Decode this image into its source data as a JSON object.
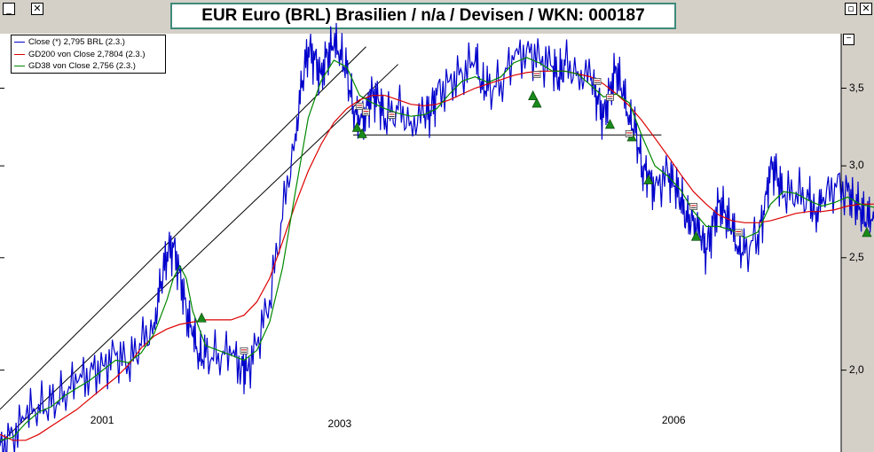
{
  "window": {
    "minimize_symbol": "_",
    "close_symbol": "✕",
    "restore_symbol": "▫",
    "corner_close_symbol": "✕"
  },
  "title": "EUR Euro (BRL) Brasilien / n/a / Devisen / WKN: 000187",
  "legend": [
    {
      "label": "Close (*) 2,795 BRL (2.3.)",
      "color": "#0000cc"
    },
    {
      "label": "GD200 von Close 2,7804 (2.3.)",
      "color": "#dd0000"
    },
    {
      "label": "GD38 von Close 2,756 (2.3.)",
      "color": "#008800"
    }
  ],
  "chart_data": {
    "type": "line",
    "title": "EUR Euro (BRL) Brasilien / n/a / Devisen / WKN: 000187",
    "x_axis_labels": [
      {
        "label": "2001",
        "x": 2001.5
      },
      {
        "label": "2003",
        "x": 2003.35
      },
      {
        "label": "2006",
        "x": 2005.95
      }
    ],
    "xlim": [
      2000.7,
      2007.25
    ],
    "y_axis": {
      "scale": "log",
      "ticks": [
        {
          "value": 2.0,
          "label": "2,0"
        },
        {
          "value": 2.5,
          "label": "2,5"
        },
        {
          "value": 3.0,
          "label": "3,0"
        },
        {
          "value": 3.5,
          "label": "3,5"
        }
      ],
      "ylim": [
        1.7,
        3.9
      ],
      "position": "right"
    },
    "series": [
      {
        "name": "Close (*) 2,795 BRL (2.3.)",
        "color": "#0000cc",
        "points": [
          [
            2000.7,
            1.72
          ],
          [
            2000.8,
            1.76
          ],
          [
            2000.9,
            1.82
          ],
          [
            2001.0,
            1.87
          ],
          [
            2001.1,
            1.86
          ],
          [
            2001.2,
            1.92
          ],
          [
            2001.3,
            1.95
          ],
          [
            2001.4,
            1.99
          ],
          [
            2001.5,
            2.02
          ],
          [
            2001.6,
            2.06
          ],
          [
            2001.7,
            2.03
          ],
          [
            2001.8,
            2.1
          ],
          [
            2001.9,
            2.2
          ],
          [
            2001.95,
            2.35
          ],
          [
            2002.0,
            2.53
          ],
          [
            2002.05,
            2.55
          ],
          [
            2002.1,
            2.43
          ],
          [
            2002.15,
            2.25
          ],
          [
            2002.2,
            2.14
          ],
          [
            2002.25,
            2.07
          ],
          [
            2002.3,
            2.05
          ],
          [
            2002.4,
            2.07
          ],
          [
            2002.5,
            2.06
          ],
          [
            2002.58,
            2.02
          ],
          [
            2002.62,
            2.0
          ],
          [
            2002.7,
            2.1
          ],
          [
            2002.8,
            2.3
          ],
          [
            2002.9,
            2.7
          ],
          [
            2003.0,
            3.2
          ],
          [
            2003.05,
            3.5
          ],
          [
            2003.1,
            3.8
          ],
          [
            2003.15,
            3.7
          ],
          [
            2003.2,
            3.6
          ],
          [
            2003.25,
            3.75
          ],
          [
            2003.3,
            3.8
          ],
          [
            2003.35,
            3.78
          ],
          [
            2003.4,
            3.6
          ],
          [
            2003.45,
            3.38
          ],
          [
            2003.5,
            3.25
          ],
          [
            2003.55,
            3.35
          ],
          [
            2003.6,
            3.48
          ],
          [
            2003.65,
            3.4
          ],
          [
            2003.7,
            3.3
          ],
          [
            2003.8,
            3.35
          ],
          [
            2003.9,
            3.28
          ],
          [
            2004.0,
            3.3
          ],
          [
            2004.05,
            3.35
          ],
          [
            2004.1,
            3.45
          ],
          [
            2004.2,
            3.55
          ],
          [
            2004.3,
            3.6
          ],
          [
            2004.4,
            3.7
          ],
          [
            2004.45,
            3.55
          ],
          [
            2004.5,
            3.48
          ],
          [
            2004.6,
            3.55
          ],
          [
            2004.7,
            3.7
          ],
          [
            2004.8,
            3.78
          ],
          [
            2004.9,
            3.72
          ],
          [
            2005.0,
            3.65
          ],
          [
            2005.05,
            3.58
          ],
          [
            2005.1,
            3.66
          ],
          [
            2005.2,
            3.62
          ],
          [
            2005.3,
            3.56
          ],
          [
            2005.35,
            3.45
          ],
          [
            2005.4,
            3.3
          ],
          [
            2005.45,
            3.5
          ],
          [
            2005.5,
            3.64
          ],
          [
            2005.55,
            3.45
          ],
          [
            2005.6,
            3.32
          ],
          [
            2005.65,
            3.2
          ],
          [
            2005.7,
            3.0
          ],
          [
            2005.75,
            2.92
          ],
          [
            2005.8,
            2.88
          ],
          [
            2005.9,
            2.96
          ],
          [
            2005.95,
            2.88
          ],
          [
            2006.0,
            2.82
          ],
          [
            2006.05,
            2.68
          ],
          [
            2006.1,
            2.72
          ],
          [
            2006.15,
            2.6
          ],
          [
            2006.2,
            2.55
          ],
          [
            2006.25,
            2.66
          ],
          [
            2006.3,
            2.8
          ],
          [
            2006.35,
            2.72
          ],
          [
            2006.4,
            2.64
          ],
          [
            2006.45,
            2.56
          ],
          [
            2006.5,
            2.52
          ],
          [
            2006.6,
            2.62
          ],
          [
            2006.65,
            2.72
          ],
          [
            2006.7,
            3.02
          ],
          [
            2006.75,
            2.95
          ],
          [
            2006.8,
            2.82
          ],
          [
            2006.9,
            2.85
          ],
          [
            2007.0,
            2.8
          ],
          [
            2007.05,
            2.74
          ],
          [
            2007.1,
            2.78
          ],
          [
            2007.2,
            2.9
          ],
          [
            2007.3,
            2.85
          ],
          [
            2007.35,
            2.8
          ],
          [
            2007.4,
            2.75
          ],
          [
            2007.45,
            2.68
          ],
          [
            2007.5,
            2.74
          ],
          [
            2007.55,
            2.795
          ]
        ]
      },
      {
        "name": "GD200 von Close 2,7804 (2.3.)",
        "color": "#dd0000",
        "points": [
          [
            2000.7,
            1.76
          ],
          [
            2000.8,
            1.74
          ],
          [
            2000.9,
            1.74
          ],
          [
            2001.0,
            1.76
          ],
          [
            2001.1,
            1.79
          ],
          [
            2001.2,
            1.82
          ],
          [
            2001.3,
            1.85
          ],
          [
            2001.4,
            1.89
          ],
          [
            2001.5,
            1.93
          ],
          [
            2001.6,
            1.97
          ],
          [
            2001.7,
            2.02
          ],
          [
            2001.8,
            2.09
          ],
          [
            2001.9,
            2.14
          ],
          [
            2002.0,
            2.17
          ],
          [
            2002.1,
            2.19
          ],
          [
            2002.2,
            2.2
          ],
          [
            2002.3,
            2.21
          ],
          [
            2002.4,
            2.21
          ],
          [
            2002.5,
            2.21
          ],
          [
            2002.6,
            2.23
          ],
          [
            2002.7,
            2.29
          ],
          [
            2002.8,
            2.4
          ],
          [
            2002.9,
            2.58
          ],
          [
            2003.0,
            2.78
          ],
          [
            2003.1,
            2.97
          ],
          [
            2003.2,
            3.13
          ],
          [
            2003.3,
            3.27
          ],
          [
            2003.4,
            3.36
          ],
          [
            2003.5,
            3.42
          ],
          [
            2003.6,
            3.45
          ],
          [
            2003.7,
            3.45
          ],
          [
            2003.8,
            3.42
          ],
          [
            2003.9,
            3.39
          ],
          [
            2004.0,
            3.38
          ],
          [
            2004.1,
            3.39
          ],
          [
            2004.2,
            3.42
          ],
          [
            2004.3,
            3.46
          ],
          [
            2004.4,
            3.5
          ],
          [
            2004.5,
            3.53
          ],
          [
            2004.6,
            3.56
          ],
          [
            2004.7,
            3.59
          ],
          [
            2004.8,
            3.61
          ],
          [
            2004.9,
            3.62
          ],
          [
            2005.0,
            3.62
          ],
          [
            2005.1,
            3.62
          ],
          [
            2005.2,
            3.6
          ],
          [
            2005.3,
            3.58
          ],
          [
            2005.4,
            3.53
          ],
          [
            2005.5,
            3.46
          ],
          [
            2005.6,
            3.38
          ],
          [
            2005.7,
            3.28
          ],
          [
            2005.8,
            3.17
          ],
          [
            2005.9,
            3.06
          ],
          [
            2006.0,
            2.95
          ],
          [
            2006.1,
            2.85
          ],
          [
            2006.2,
            2.78
          ],
          [
            2006.3,
            2.72
          ],
          [
            2006.4,
            2.69
          ],
          [
            2006.5,
            2.68
          ],
          [
            2006.6,
            2.68
          ],
          [
            2006.7,
            2.69
          ],
          [
            2006.8,
            2.71
          ],
          [
            2006.9,
            2.73
          ],
          [
            2007.0,
            2.74
          ],
          [
            2007.1,
            2.74
          ],
          [
            2007.2,
            2.75
          ],
          [
            2007.3,
            2.77
          ],
          [
            2007.4,
            2.78
          ],
          [
            2007.55,
            2.7804
          ]
        ]
      },
      {
        "name": "GD38 von Close 2,756 (2.3.)",
        "color": "#008800",
        "points": [
          [
            2000.7,
            1.74
          ],
          [
            2000.8,
            1.75
          ],
          [
            2000.9,
            1.8
          ],
          [
            2001.0,
            1.84
          ],
          [
            2001.1,
            1.86
          ],
          [
            2001.2,
            1.9
          ],
          [
            2001.3,
            1.93
          ],
          [
            2001.4,
            1.96
          ],
          [
            2001.5,
            2.0
          ],
          [
            2001.6,
            2.04
          ],
          [
            2001.7,
            2.03
          ],
          [
            2001.8,
            2.07
          ],
          [
            2001.9,
            2.15
          ],
          [
            2002.0,
            2.3
          ],
          [
            2002.05,
            2.4
          ],
          [
            2002.1,
            2.46
          ],
          [
            2002.15,
            2.4
          ],
          [
            2002.2,
            2.25
          ],
          [
            2002.3,
            2.1
          ],
          [
            2002.4,
            2.08
          ],
          [
            2002.5,
            2.06
          ],
          [
            2002.6,
            2.04
          ],
          [
            2002.7,
            2.08
          ],
          [
            2002.8,
            2.2
          ],
          [
            2002.9,
            2.45
          ],
          [
            2003.0,
            2.85
          ],
          [
            2003.1,
            3.3
          ],
          [
            2003.2,
            3.55
          ],
          [
            2003.3,
            3.7
          ],
          [
            2003.4,
            3.65
          ],
          [
            2003.5,
            3.45
          ],
          [
            2003.6,
            3.4
          ],
          [
            2003.7,
            3.36
          ],
          [
            2003.8,
            3.33
          ],
          [
            2003.9,
            3.31
          ],
          [
            2004.0,
            3.32
          ],
          [
            2004.1,
            3.36
          ],
          [
            2004.2,
            3.46
          ],
          [
            2004.3,
            3.55
          ],
          [
            2004.4,
            3.58
          ],
          [
            2004.5,
            3.54
          ],
          [
            2004.6,
            3.58
          ],
          [
            2004.7,
            3.68
          ],
          [
            2004.8,
            3.72
          ],
          [
            2004.9,
            3.68
          ],
          [
            2005.0,
            3.62
          ],
          [
            2005.1,
            3.62
          ],
          [
            2005.2,
            3.6
          ],
          [
            2005.3,
            3.52
          ],
          [
            2005.4,
            3.44
          ],
          [
            2005.5,
            3.46
          ],
          [
            2005.6,
            3.4
          ],
          [
            2005.7,
            3.18
          ],
          [
            2005.8,
            3.0
          ],
          [
            2005.9,
            2.94
          ],
          [
            2006.0,
            2.86
          ],
          [
            2006.1,
            2.74
          ],
          [
            2006.2,
            2.66
          ],
          [
            2006.3,
            2.66
          ],
          [
            2006.4,
            2.64
          ],
          [
            2006.5,
            2.6
          ],
          [
            2006.6,
            2.63
          ],
          [
            2006.7,
            2.78
          ],
          [
            2006.8,
            2.85
          ],
          [
            2006.9,
            2.84
          ],
          [
            2007.0,
            2.8
          ],
          [
            2007.1,
            2.77
          ],
          [
            2007.2,
            2.79
          ],
          [
            2007.3,
            2.82
          ],
          [
            2007.4,
            2.78
          ],
          [
            2007.55,
            2.756
          ]
        ]
      }
    ],
    "annotations": {
      "trend_channel_upper": [
        [
          2000.7,
          1.85
        ],
        [
          2003.55,
          3.8
        ]
      ],
      "trend_channel_lower": [
        [
          2000.7,
          1.73
        ],
        [
          2003.8,
          3.67
        ]
      ],
      "support_line": [
        [
          2003.45,
          3.19
        ],
        [
          2005.85,
          3.19
        ]
      ],
      "buy_signals": [
        [
          2002.27,
          2.22
        ],
        [
          2003.48,
          3.24
        ],
        [
          2003.52,
          3.2
        ],
        [
          2004.85,
          3.45
        ],
        [
          2004.88,
          3.4
        ],
        [
          2005.45,
          3.26
        ],
        [
          2005.62,
          3.18
        ],
        [
          2005.75,
          2.92
        ],
        [
          2006.12,
          2.61
        ],
        [
          2007.45,
          2.63
        ]
      ],
      "sell_signals": [
        [
          2002.6,
          2.08
        ],
        [
          2003.5,
          3.38
        ],
        [
          2003.55,
          3.34
        ],
        [
          2003.75,
          3.32
        ],
        [
          2004.88,
          3.6
        ],
        [
          2005.35,
          3.55
        ],
        [
          2005.45,
          3.44
        ],
        [
          2005.6,
          3.2
        ],
        [
          2006.1,
          2.77
        ],
        [
          2006.45,
          2.63
        ]
      ]
    },
    "grid": false,
    "legend_position": "top-left"
  }
}
